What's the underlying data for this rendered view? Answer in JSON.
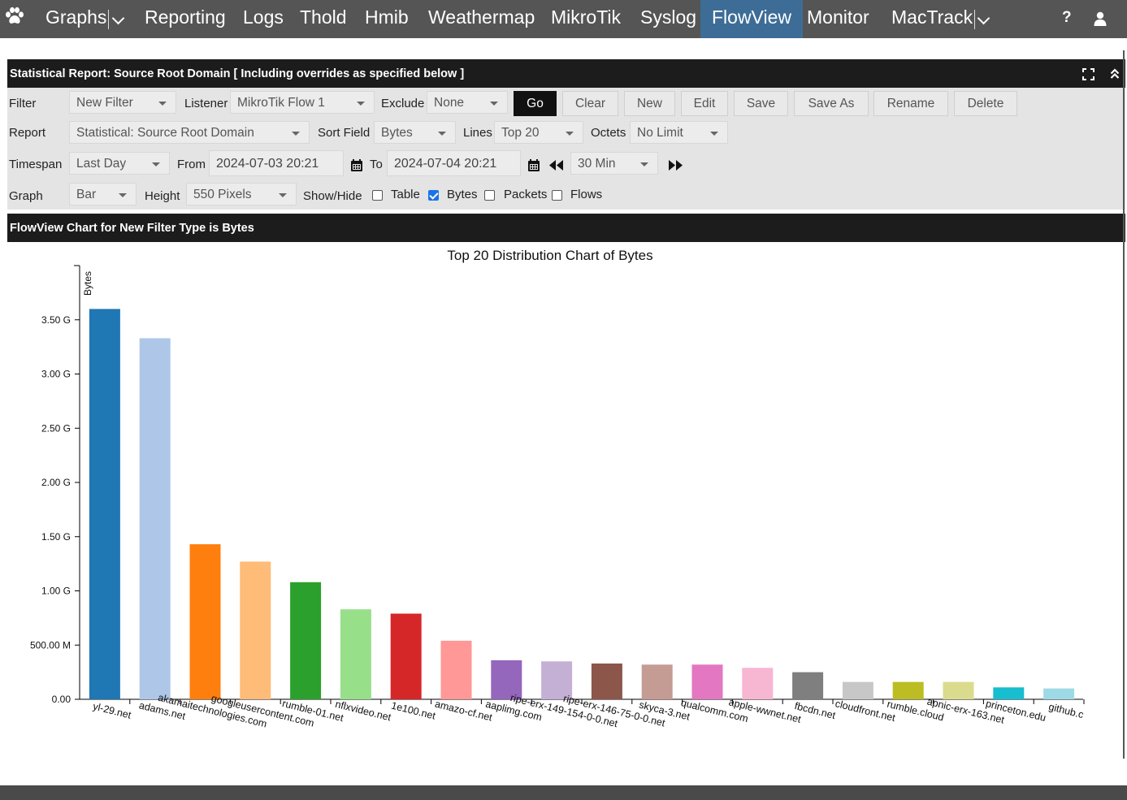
{
  "nav": {
    "items": [
      {
        "label": "Graphs",
        "has_menu": true
      },
      {
        "label": "Reporting"
      },
      {
        "label": "Logs"
      },
      {
        "label": "Thold"
      },
      {
        "label": "Hmib"
      },
      {
        "label": "Weathermap"
      },
      {
        "label": "MikroTik"
      },
      {
        "label": "Syslog"
      },
      {
        "label": "FlowView",
        "active": true
      },
      {
        "label": "Monitor"
      },
      {
        "label": "MacTrack",
        "has_menu": true
      }
    ],
    "help_label": "?",
    "active_color": "#3d6d97"
  },
  "report": {
    "title": "Statistical Report: Source Root Domain [ Including overrides as specified below ]"
  },
  "filters": {
    "filter_label": "Filter",
    "filter_value": "New Filter",
    "listener_label": "Listener",
    "listener_value": "MikroTik Flow 1",
    "exclude_label": "Exclude",
    "exclude_value": "None",
    "buttons": {
      "go": "Go",
      "clear": "Clear",
      "new": "New",
      "edit": "Edit",
      "save": "Save",
      "save_as": "Save As",
      "rename": "Rename",
      "delete": "Delete"
    },
    "report_label": "Report",
    "report_value": "Statistical: Source Root Domain",
    "sort_label": "Sort Field",
    "sort_value": "Bytes",
    "lines_label": "Lines",
    "lines_value": "Top 20",
    "octets_label": "Octets",
    "octets_value": "No Limit",
    "timespan_label": "Timespan",
    "timespan_value": "Last Day",
    "from_label": "From",
    "from_value": "2024-07-03 20:21",
    "to_label": "To",
    "to_value": "2024-07-04 20:21",
    "shift_value": "30 Min",
    "graph_label": "Graph",
    "graph_value": "Bar",
    "height_label": "Height",
    "height_value": "550 Pixels",
    "showhide_label": "Show/Hide",
    "table_label": "Table",
    "table_checked": false,
    "bytes_label": "Bytes",
    "bytes_checked": true,
    "packets_label": "Packets",
    "packets_checked": false,
    "flows_label": "Flows",
    "flows_checked": false
  },
  "chart_panel": {
    "title": "FlowView Chart for New Filter Type is Bytes"
  },
  "chart_data": {
    "type": "bar",
    "title": "Top 20 Distribution Chart of Bytes",
    "ylabel": "Bytes",
    "ylim": [
      0,
      4000000000
    ],
    "yticks": [
      {
        "value": 0,
        "label": "0.00"
      },
      {
        "value": 500000000,
        "label": "500.00 M"
      },
      {
        "value": 1000000000,
        "label": "1.00 G"
      },
      {
        "value": 1500000000,
        "label": "1.50 G"
      },
      {
        "value": 2000000000,
        "label": "2.00 G"
      },
      {
        "value": 2500000000,
        "label": "2.50 G"
      },
      {
        "value": 3000000000,
        "label": "3.00 G"
      },
      {
        "value": 3500000000,
        "label": "3.50 G"
      }
    ],
    "categories": [
      "yl-29.net",
      "adams.net",
      "akamaitechnologies.com",
      "googleusercontent.com",
      "rumble-01.net",
      "nflxvideo.net",
      "1e100.net",
      "amazo-cf.net",
      "aaplimg.com",
      "ripe-erx-149-154-0-0.net",
      "ripe-erx-146-75-0-0.net",
      "skyca-3.net",
      "qualcomm.com",
      "apple-wwnet.net",
      "fbcdn.net",
      "cloudfront.net",
      "rumble.cloud",
      "apnic-erx-163.net",
      "princeton.edu",
      "github.c"
    ],
    "values": [
      3600000000,
      3330000000,
      1430000000,
      1270000000,
      1080000000,
      830000000,
      790000000,
      540000000,
      360000000,
      350000000,
      330000000,
      320000000,
      320000000,
      290000000,
      250000000,
      160000000,
      160000000,
      160000000,
      110000000,
      100000000
    ],
    "colors": [
      "#1f77b4",
      "#aec7e8",
      "#ff7f0e",
      "#ffbb78",
      "#2ca02c",
      "#98df8a",
      "#d62728",
      "#ff9896",
      "#9467bd",
      "#c5b0d5",
      "#8c564b",
      "#c49c94",
      "#e377c2",
      "#f7b6d2",
      "#7f7f7f",
      "#c7c7c7",
      "#bcbd22",
      "#dbdb8d",
      "#17becf",
      "#9edae5"
    ]
  }
}
